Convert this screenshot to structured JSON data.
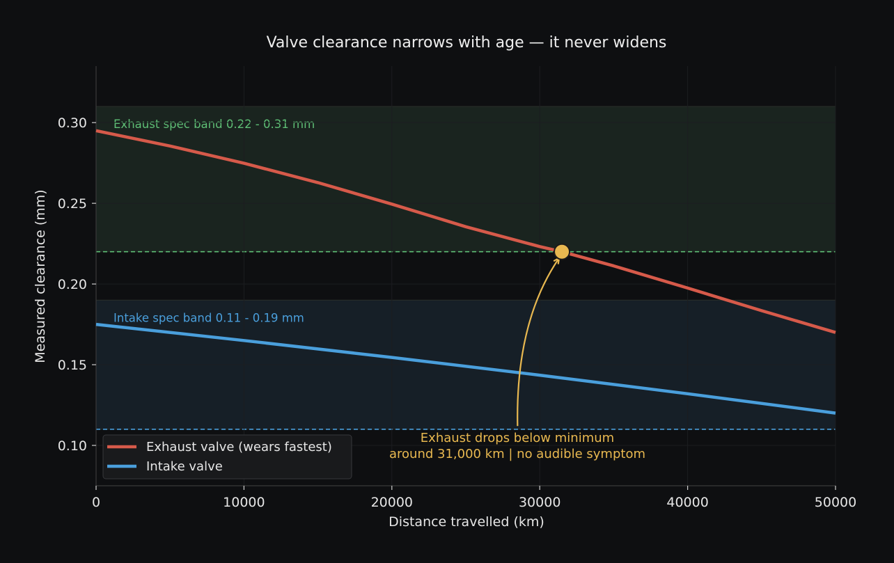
{
  "chart_data": {
    "type": "line",
    "title": "Valve clearance narrows with age — it never widens",
    "xlabel": "Distance travelled (km)",
    "ylabel": "Measured clearance (mm)",
    "xlim": [
      0,
      50000
    ],
    "ylim": [
      0.075,
      0.335
    ],
    "x_ticks": [
      0,
      10000,
      20000,
      30000,
      40000,
      50000
    ],
    "y_ticks": [
      0.1,
      0.15,
      0.2,
      0.25,
      0.3
    ],
    "x_tick_labels": [
      "0",
      "10000",
      "20000",
      "30000",
      "40000",
      "50000"
    ],
    "y_tick_labels": [
      "0.10",
      "0.15",
      "0.20",
      "0.25",
      "0.30"
    ],
    "grid": true,
    "legend_position": "lower-left",
    "bands": [
      {
        "name": "exhaust-spec-band",
        "label": "Exhaust spec band  0.22 - 0.31 mm",
        "min": 0.22,
        "max": 0.31,
        "fill": "#1a241f",
        "line_color": "#5fbf76",
        "text_color": "#5fbf76"
      },
      {
        "name": "intake-spec-band",
        "label": "Intake spec band  0.11 - 0.19 mm",
        "min": 0.11,
        "max": 0.19,
        "fill": "#161f27",
        "line_color": "#4a9fdc",
        "text_color": "#4a9fdc"
      }
    ],
    "series": [
      {
        "name": "Exhaust valve (wears fastest)",
        "color": "#d65a4a",
        "x": [
          0,
          5000,
          10000,
          15000,
          20000,
          25000,
          30000,
          31500,
          35000,
          40000,
          45000,
          50000
        ],
        "y": [
          0.295,
          0.2855,
          0.2748,
          0.2628,
          0.2495,
          0.2355,
          0.2232,
          0.22,
          0.2112,
          0.1975,
          0.1835,
          0.17
        ]
      },
      {
        "name": "Intake valve",
        "color": "#4a9fdc",
        "x": [
          0,
          10000,
          20000,
          30000,
          40000,
          50000
        ],
        "y": [
          0.175,
          0.165,
          0.1545,
          0.1435,
          0.132,
          0.12
        ]
      }
    ],
    "highlight_point": {
      "x": 31500,
      "y": 0.22,
      "color": "#e8b850"
    },
    "annotation": {
      "lines": [
        "Exhaust drops below minimum",
        "around 31,000 km  |  no audible symptom"
      ],
      "color": "#e8b850",
      "arrow_tail": {
        "x": 28500,
        "y": 0.112
      }
    },
    "colors": {
      "background": "#0e0f11",
      "plot_background": "#0e0f11",
      "axis": "#3a3a3a",
      "grid": "#1c1d20",
      "legend_background": "#1a1b1d",
      "legend_border": "#3b3c3f"
    }
  }
}
